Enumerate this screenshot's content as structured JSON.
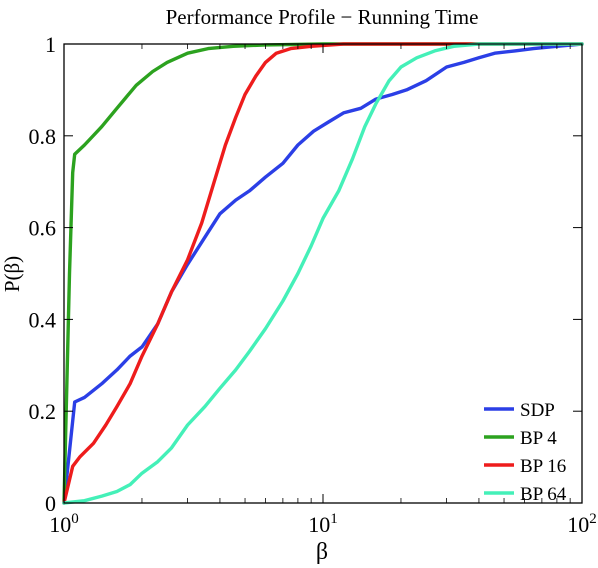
{
  "chart_data": {
    "type": "line",
    "title": "Performance Profile − Running Time",
    "xlabel": "β",
    "ylabel": "P(β)",
    "xscale": "log",
    "xlim": [
      1,
      100
    ],
    "ylim": [
      0,
      1
    ],
    "grid": false,
    "legend_position": "bottom-right",
    "x_ticks": [
      {
        "value": 1,
        "base": "10",
        "exp": "0"
      },
      {
        "value": 10,
        "base": "10",
        "exp": "1"
      },
      {
        "value": 100,
        "base": "10",
        "exp": "2"
      }
    ],
    "y_ticks": [
      {
        "value": 0,
        "label": "0"
      },
      {
        "value": 0.2,
        "label": "0.2"
      },
      {
        "value": 0.4,
        "label": "0.4"
      },
      {
        "value": 0.6,
        "label": "0.6"
      },
      {
        "value": 0.8,
        "label": "0.8"
      },
      {
        "value": 1,
        "label": "1"
      }
    ],
    "series": [
      {
        "name": "SDP",
        "color": "#2b3fe6",
        "points": [
          [
            1,
            0
          ],
          [
            1.1,
            0.22
          ],
          [
            1.2,
            0.23
          ],
          [
            1.4,
            0.26
          ],
          [
            1.6,
            0.29
          ],
          [
            1.8,
            0.32
          ],
          [
            2.0,
            0.34
          ],
          [
            2.3,
            0.39
          ],
          [
            2.6,
            0.46
          ],
          [
            3.0,
            0.52
          ],
          [
            3.6,
            0.59
          ],
          [
            4.0,
            0.63
          ],
          [
            4.6,
            0.66
          ],
          [
            5.2,
            0.68
          ],
          [
            6.0,
            0.71
          ],
          [
            7.0,
            0.74
          ],
          [
            8.0,
            0.78
          ],
          [
            9.2,
            0.81
          ],
          [
            10.5,
            0.83
          ],
          [
            12.0,
            0.85
          ],
          [
            14.0,
            0.86
          ],
          [
            16.0,
            0.88
          ],
          [
            18.5,
            0.89
          ],
          [
            21.0,
            0.9
          ],
          [
            25.0,
            0.92
          ],
          [
            30.0,
            0.95
          ],
          [
            35.0,
            0.96
          ],
          [
            40.0,
            0.97
          ],
          [
            46.0,
            0.98
          ],
          [
            55.0,
            0.985
          ],
          [
            65.0,
            0.99
          ],
          [
            80.0,
            0.995
          ],
          [
            100.0,
            1.0
          ]
        ]
      },
      {
        "name": "BP 4",
        "color": "#2ca21f",
        "points": [
          [
            1,
            0
          ],
          [
            1.02,
            0.2
          ],
          [
            1.05,
            0.5
          ],
          [
            1.08,
            0.72
          ],
          [
            1.1,
            0.76
          ],
          [
            1.2,
            0.78
          ],
          [
            1.4,
            0.82
          ],
          [
            1.6,
            0.86
          ],
          [
            1.9,
            0.91
          ],
          [
            2.2,
            0.94
          ],
          [
            2.5,
            0.96
          ],
          [
            3.0,
            0.98
          ],
          [
            3.6,
            0.99
          ],
          [
            4.5,
            0.995
          ],
          [
            6.0,
            0.998
          ],
          [
            10.0,
            1.0
          ],
          [
            100.0,
            1.0
          ]
        ]
      },
      {
        "name": "BP 16",
        "color": "#ee1c1c",
        "points": [
          [
            1,
            0
          ],
          [
            1.08,
            0.08
          ],
          [
            1.15,
            0.1
          ],
          [
            1.3,
            0.13
          ],
          [
            1.45,
            0.17
          ],
          [
            1.6,
            0.21
          ],
          [
            1.8,
            0.26
          ],
          [
            2.0,
            0.32
          ],
          [
            2.3,
            0.39
          ],
          [
            2.6,
            0.46
          ],
          [
            3.0,
            0.53
          ],
          [
            3.4,
            0.61
          ],
          [
            3.8,
            0.7
          ],
          [
            4.2,
            0.78
          ],
          [
            4.6,
            0.84
          ],
          [
            5.0,
            0.89
          ],
          [
            5.5,
            0.93
          ],
          [
            6.0,
            0.96
          ],
          [
            6.6,
            0.98
          ],
          [
            7.5,
            0.99
          ],
          [
            9.0,
            0.995
          ],
          [
            12.0,
            1.0
          ],
          [
            100.0,
            1.0
          ]
        ]
      },
      {
        "name": "BP 64",
        "color": "#44f0b8",
        "points": [
          [
            1,
            0
          ],
          [
            1.2,
            0.005
          ],
          [
            1.4,
            0.015
          ],
          [
            1.6,
            0.025
          ],
          [
            1.8,
            0.04
          ],
          [
            2.0,
            0.065
          ],
          [
            2.3,
            0.09
          ],
          [
            2.6,
            0.12
          ],
          [
            3.0,
            0.17
          ],
          [
            3.5,
            0.21
          ],
          [
            4.0,
            0.25
          ],
          [
            4.6,
            0.29
          ],
          [
            5.2,
            0.33
          ],
          [
            6.0,
            0.38
          ],
          [
            7.0,
            0.44
          ],
          [
            8.0,
            0.5
          ],
          [
            9.0,
            0.56
          ],
          [
            10.0,
            0.62
          ],
          [
            11.5,
            0.68
          ],
          [
            13.0,
            0.75
          ],
          [
            14.5,
            0.82
          ],
          [
            16.0,
            0.87
          ],
          [
            18.0,
            0.92
          ],
          [
            20.0,
            0.95
          ],
          [
            23.0,
            0.97
          ],
          [
            27.0,
            0.985
          ],
          [
            32.0,
            0.995
          ],
          [
            40.0,
            1.0
          ],
          [
            100.0,
            1.0
          ]
        ]
      }
    ]
  }
}
